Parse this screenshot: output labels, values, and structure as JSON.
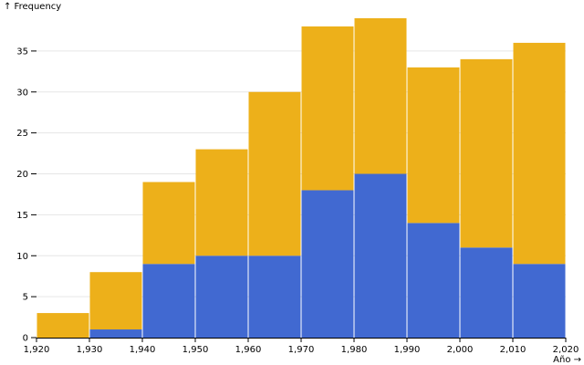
{
  "chart_data": {
    "type": "bar",
    "stacked": true,
    "xlabel": "Año →",
    "ylabel": "↑ Frequency",
    "x_bins": [
      1920,
      1930,
      1940,
      1950,
      1960,
      1970,
      1980,
      1990,
      2000,
      2010,
      2020
    ],
    "x_tick_labels": [
      "1,920",
      "1,930",
      "1,940",
      "1,950",
      "1,960",
      "1,970",
      "1,980",
      "1,990",
      "2,000",
      "2,010",
      "2,020"
    ],
    "y_ticks": [
      0,
      5,
      10,
      15,
      20,
      25,
      30,
      35
    ],
    "ylim": [
      0,
      39
    ],
    "grid": true,
    "series": [
      {
        "color": "#4169d1",
        "values": [
          0,
          1,
          9,
          10,
          10,
          18,
          20,
          14,
          11,
          9
        ]
      },
      {
        "color": "#edb01a",
        "values": [
          3,
          7,
          10,
          13,
          20,
          20,
          19,
          19,
          23,
          27
        ]
      }
    ]
  }
}
